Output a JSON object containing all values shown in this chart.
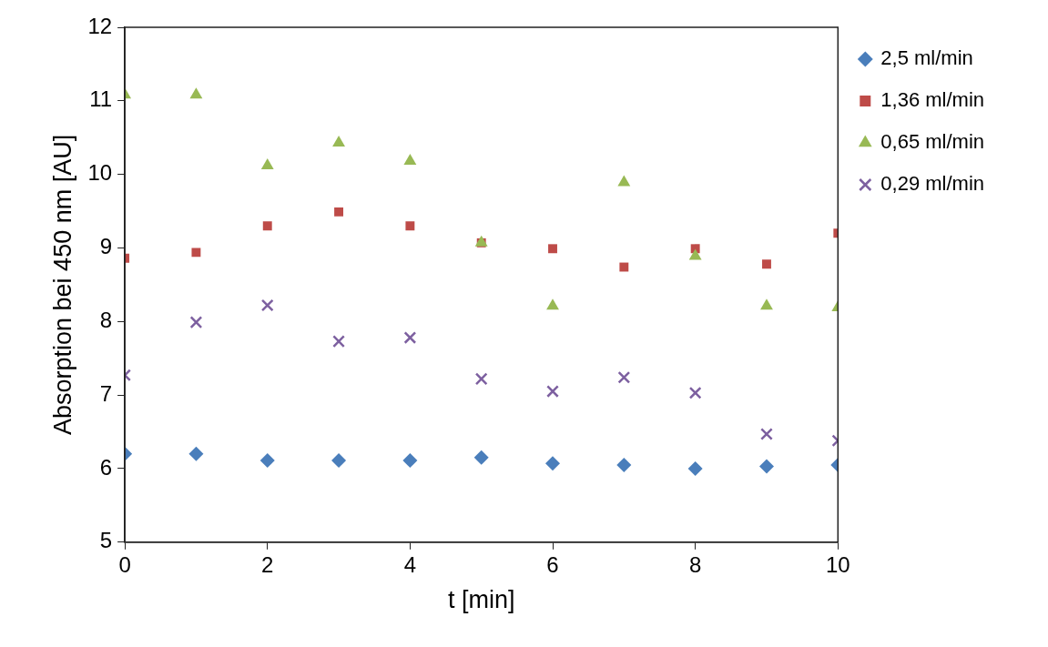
{
  "chart_data": {
    "type": "scatter",
    "xlabel": "t [min]",
    "ylabel": "Absorption bei 450 nm [AU]",
    "x": [
      0,
      1,
      2,
      3,
      4,
      5,
      6,
      7,
      8,
      9,
      10
    ],
    "xlim": [
      0,
      10
    ],
    "xticks": [
      0,
      2,
      4,
      6,
      8,
      10
    ],
    "ylim": [
      5,
      12
    ],
    "yticks": [
      5,
      6,
      7,
      8,
      9,
      10,
      11,
      12
    ],
    "legend": "right",
    "series": [
      {
        "name": "2,5 ml/min",
        "color": "#4a7ebb",
        "marker": "diamond",
        "values": [
          6.2,
          6.2,
          6.11,
          6.11,
          6.11,
          6.15,
          6.07,
          6.05,
          6.0,
          6.03,
          6.05
        ]
      },
      {
        "name": "1,36 ml/min",
        "color": "#be4b48",
        "marker": "square",
        "values": [
          8.86,
          8.94,
          9.3,
          9.49,
          9.3,
          9.07,
          8.99,
          8.74,
          8.99,
          8.78,
          9.2
        ]
      },
      {
        "name": "0,65 ml/min",
        "color": "#98b954",
        "marker": "triangle",
        "values": [
          11.08,
          11.08,
          10.12,
          10.43,
          10.18,
          9.07,
          8.21,
          9.89,
          8.89,
          8.21,
          8.19
        ]
      },
      {
        "name": "0,29 ml/min",
        "color": "#7d60a0",
        "marker": "cross",
        "values": [
          7.27,
          7.99,
          8.22,
          7.73,
          7.78,
          7.22,
          7.05,
          7.24,
          7.03,
          6.47,
          6.38
        ]
      }
    ]
  }
}
